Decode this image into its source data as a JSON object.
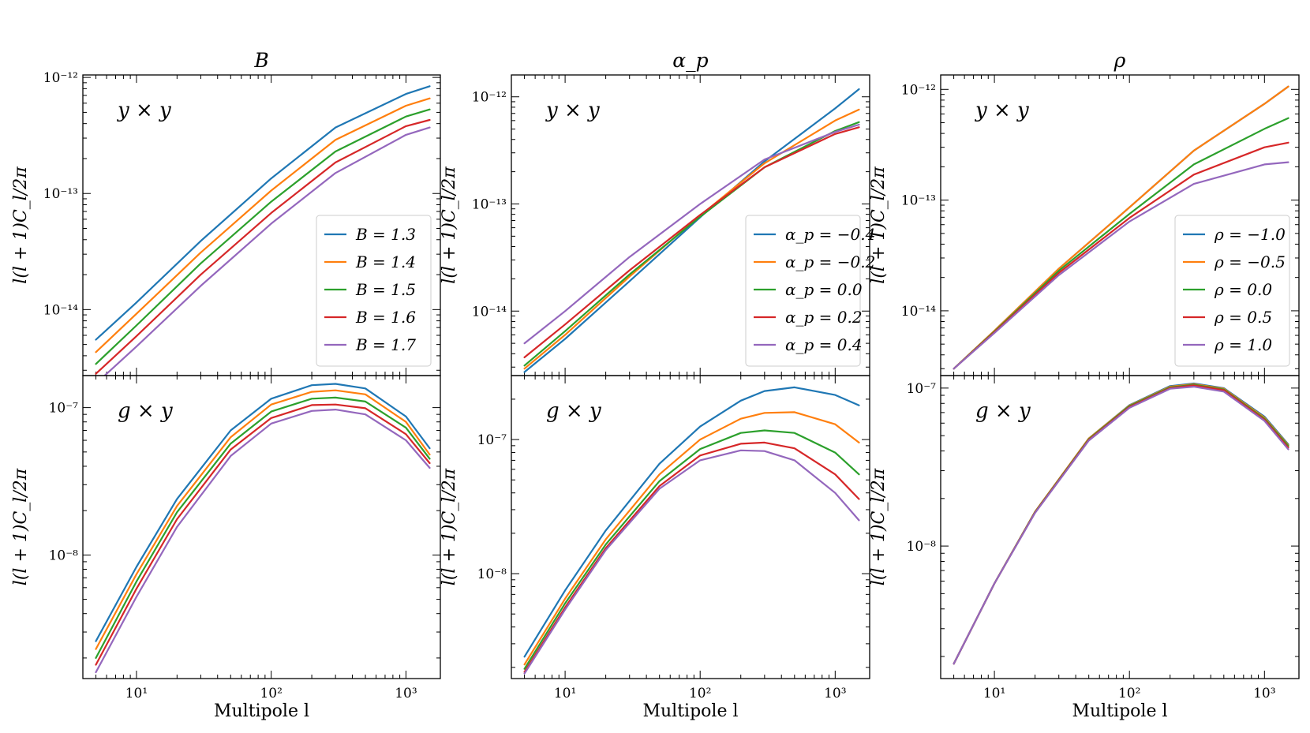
{
  "colors": [
    "#1f77b4",
    "#ff7f0e",
    "#2ca02c",
    "#d62728",
    "#9467bd"
  ],
  "chart_data": [
    {
      "type": "line",
      "id": "B-yy",
      "column_title": "B",
      "annotation": "y × y",
      "ylabel": "l(l + 1)C_l/2π",
      "xlabel": "",
      "xscale": "log",
      "yscale": "log",
      "xlim": [
        4,
        1800
      ],
      "ylim": [
        2.7e-15,
        1.05e-12
      ],
      "ytick_labels": [
        {
          "value": 1e-12,
          "label": "10⁻¹²"
        },
        {
          "value": 1e-13,
          "label": "10⁻¹³"
        },
        {
          "value": 1e-14,
          "label": "10⁻¹⁴"
        }
      ],
      "xtick_labels": [],
      "legend": "lower-right",
      "x": [
        5,
        10,
        30,
        100,
        300,
        1000,
        1500
      ],
      "series": [
        {
          "name": "B = 1.3",
          "values": [
            5.5e-15,
            1.15e-14,
            3.9e-14,
            1.35e-13,
            3.7e-13,
            7.2e-13,
            8.4e-13
          ]
        },
        {
          "name": "B = 1.4",
          "values": [
            4.3e-15,
            9.2e-15,
            3.1e-14,
            1.06e-13,
            2.9e-13,
            5.7e-13,
            6.6e-13
          ]
        },
        {
          "name": "B = 1.5",
          "values": [
            3.4e-15,
            7.3e-15,
            2.5e-14,
            8.5e-14,
            2.3e-13,
            4.6e-13,
            5.3e-13
          ]
        },
        {
          "name": "B = 1.6",
          "values": [
            2.8e-15,
            5.9e-15,
            2e-14,
            6.8e-14,
            1.85e-13,
            3.8e-13,
            4.3e-13
          ]
        },
        {
          "name": "B = 1.7",
          "values": [
            2.3e-15,
            4.8e-15,
            1.6e-14,
            5.5e-14,
            1.5e-13,
            3.2e-13,
            3.7e-13
          ]
        }
      ]
    },
    {
      "type": "line",
      "id": "ap-yy",
      "column_title": "α_p",
      "annotation": "y × y",
      "ylabel": "l(l + 1)C_l/2π",
      "xlabel": "",
      "xscale": "log",
      "yscale": "log",
      "xlim": [
        4,
        1800
      ],
      "ylim": [
        2.5e-15,
        1.6e-12
      ],
      "ytick_labels": [
        {
          "value": 1e-12,
          "label": "10⁻¹²"
        },
        {
          "value": 1e-13,
          "label": "10⁻¹³"
        },
        {
          "value": 1e-14,
          "label": "10⁻¹⁴"
        }
      ],
      "xtick_labels": [],
      "legend": "lower-right",
      "x": [
        5,
        10,
        30,
        100,
        300,
        1000,
        1500
      ],
      "series": [
        {
          "name": "α_p = −0.4",
          "values": [
            2.7e-15,
            5.5e-15,
            1.9e-14,
            7.5e-14,
            2.5e-13,
            7.8e-13,
            1.18e-12
          ]
        },
        {
          "name": "α_p = −0.2",
          "values": [
            2.9e-15,
            6e-15,
            2.1e-14,
            7.8e-14,
            2.4e-13,
            6e-13,
            7.6e-13
          ]
        },
        {
          "name": "α_p = 0.0",
          "values": [
            3.1e-15,
            6.5e-15,
            2.2e-14,
            7.6e-14,
            2.2e-13,
            4.8e-13,
            5.8e-13
          ]
        },
        {
          "name": "α_p = 0.2",
          "values": [
            3.7e-15,
            7.5e-15,
            2.4e-14,
            7.9e-14,
            2.2e-13,
            4.5e-13,
            5.2e-13
          ]
        },
        {
          "name": "α_p = 0.4",
          "values": [
            5e-15,
            1e-14,
            3.2e-14,
            1e-13,
            2.6e-13,
            4.7e-13,
            5.5e-13
          ]
        }
      ]
    },
    {
      "type": "line",
      "id": "rho-yy",
      "column_title": "ρ",
      "annotation": "y × y",
      "ylabel": "l(l + 1)C_l/2π",
      "xlabel": "",
      "xscale": "log",
      "yscale": "log",
      "xlim": [
        4,
        1800
      ],
      "ylim": [
        2.6e-15,
        1.35e-12
      ],
      "ytick_labels": [
        {
          "value": 1e-12,
          "label": "10⁻¹²"
        },
        {
          "value": 1e-13,
          "label": "10⁻¹³"
        },
        {
          "value": 1e-14,
          "label": "10⁻¹⁴"
        }
      ],
      "xtick_labels": [],
      "legend": "lower-right",
      "x": [
        5,
        10,
        30,
        100,
        300,
        1000,
        1500
      ],
      "series": [
        {
          "name": "ρ = −1.0",
          "values": [
            3e-15,
            6.6e-15,
            2.4e-14,
            8.6e-14,
            2.8e-13,
            7.4e-13,
            1.06e-12
          ]
        },
        {
          "name": "ρ = −0.5",
          "values": [
            3e-15,
            6.6e-15,
            2.4e-14,
            8.6e-14,
            2.8e-13,
            7.4e-13,
            1.06e-12
          ]
        },
        {
          "name": "ρ = 0.0",
          "values": [
            3e-15,
            6.5e-15,
            2.3e-14,
            7.5e-14,
            2.1e-13,
            4.4e-13,
            5.5e-13
          ]
        },
        {
          "name": "ρ = 0.5",
          "values": [
            3e-15,
            6.4e-15,
            2.2e-14,
            6.9e-14,
            1.7e-13,
            3e-13,
            3.3e-13
          ]
        },
        {
          "name": "ρ = 1.0",
          "values": [
            3e-15,
            6.3e-15,
            2.1e-14,
            6.4e-14,
            1.4e-13,
            2.1e-13,
            2.2e-13
          ]
        }
      ]
    },
    {
      "type": "line",
      "id": "B-gy",
      "column_title": "",
      "annotation": "g × y",
      "ylabel": "l(l + 1)C_l/2π",
      "xlabel": "Multipole l",
      "xscale": "log",
      "yscale": "log",
      "xlim": [
        4,
        1800
      ],
      "ylim": [
        1.45e-09,
        1.65e-07
      ],
      "ytick_labels": [
        {
          "value": 1e-07,
          "label": "10⁻⁷"
        },
        {
          "value": 1e-08,
          "label": "10⁻⁸"
        }
      ],
      "xtick_labels": [
        {
          "value": 10,
          "label": "10¹"
        },
        {
          "value": 100,
          "label": "10²"
        },
        {
          "value": 1000,
          "label": "10³"
        }
      ],
      "legend": "none",
      "x": [
        5,
        10,
        20,
        50,
        100,
        200,
        300,
        500,
        1000,
        1500
      ],
      "series": [
        {
          "name": "",
          "values": [
            2.6e-09,
            8.3e-09,
            2.4e-08,
            7e-08,
            1.15e-07,
            1.42e-07,
            1.45e-07,
            1.35e-07,
            8.7e-08,
            5.3e-08
          ]
        },
        {
          "name": "",
          "values": [
            2.3e-09,
            7.4e-09,
            2.15e-08,
            6.3e-08,
            1.05e-07,
            1.28e-07,
            1.31e-07,
            1.23e-07,
            8e-08,
            4.8e-08
          ]
        },
        {
          "name": "",
          "values": [
            2e-09,
            6.6e-09,
            1.95e-08,
            5.7e-08,
            9.4e-08,
            1.15e-07,
            1.17e-07,
            1.1e-07,
            7.3e-08,
            4.5e-08
          ]
        },
        {
          "name": "",
          "values": [
            1.8e-09,
            5.9e-09,
            1.75e-08,
            5.2e-08,
            8.5e-08,
            1.04e-07,
            1.05e-07,
            9.9e-08,
            6.6e-08,
            4.2e-08
          ]
        },
        {
          "name": "",
          "values": [
            1.6e-09,
            5.2e-09,
            1.55e-08,
            4.7e-08,
            7.8e-08,
            9.5e-08,
            9.7e-08,
            9e-08,
            6e-08,
            3.9e-08
          ]
        }
      ]
    },
    {
      "type": "line",
      "id": "ap-gy",
      "column_title": "",
      "annotation": "g × y",
      "ylabel": "l(l + 1)C_l/2π",
      "xlabel": "Multipole l",
      "xscale": "log",
      "yscale": "log",
      "xlim": [
        4,
        1800
      ],
      "ylim": [
        1.65e-09,
        3e-07
      ],
      "ytick_labels": [
        {
          "value": 1e-07,
          "label": "10⁻⁷"
        },
        {
          "value": 1e-08,
          "label": "10⁻⁸"
        }
      ],
      "xtick_labels": [
        {
          "value": 10,
          "label": "10¹"
        },
        {
          "value": 100,
          "label": "10²"
        },
        {
          "value": 1000,
          "label": "10³"
        }
      ],
      "legend": "none",
      "x": [
        5,
        10,
        20,
        50,
        100,
        200,
        300,
        500,
        1000,
        1500
      ],
      "series": [
        {
          "name": "",
          "values": [
            2.4e-09,
            7.5e-09,
            2.1e-08,
            6.6e-08,
            1.25e-07,
            1.95e-07,
            2.3e-07,
            2.45e-07,
            2.15e-07,
            1.8e-07
          ]
        },
        {
          "name": "",
          "values": [
            2.1e-09,
            6.5e-09,
            1.8e-08,
            5.5e-08,
            1e-07,
            1.43e-07,
            1.58e-07,
            1.6e-07,
            1.3e-07,
            9.5e-08
          ]
        },
        {
          "name": "",
          "values": [
            1.95e-09,
            6e-09,
            1.65e-08,
            4.9e-08,
            8.5e-08,
            1.12e-07,
            1.17e-07,
            1.12e-07,
            8e-08,
            5.5e-08
          ]
        },
        {
          "name": "",
          "values": [
            1.85e-09,
            5.6e-09,
            1.55e-08,
            4.5e-08,
            7.6e-08,
            9.3e-08,
            9.5e-08,
            8.6e-08,
            5.5e-08,
            3.6e-08
          ]
        },
        {
          "name": "",
          "values": [
            1.8e-09,
            5.4e-09,
            1.5e-08,
            4.3e-08,
            7e-08,
            8.3e-08,
            8.2e-08,
            7e-08,
            4e-08,
            2.5e-08
          ]
        }
      ]
    },
    {
      "type": "line",
      "id": "rho-gy",
      "column_title": "",
      "annotation": "g × y",
      "ylabel": "l(l + 1)C_l/2π",
      "xlabel": "Multipole l",
      "xscale": "log",
      "yscale": "log",
      "xlim": [
        4,
        1800
      ],
      "ylim": [
        1.45e-09,
        1.2e-07
      ],
      "ytick_labels": [
        {
          "value": 1e-07,
          "label": "10⁻⁷"
        },
        {
          "value": 1e-08,
          "label": "10⁻⁸"
        }
      ],
      "xtick_labels": [
        {
          "value": 10,
          "label": "10¹"
        },
        {
          "value": 100,
          "label": "10²"
        },
        {
          "value": 1000,
          "label": "10³"
        }
      ],
      "legend": "none",
      "x": [
        5,
        10,
        20,
        50,
        100,
        200,
        300,
        500,
        1000,
        1500
      ],
      "series": [
        {
          "name": "",
          "values": [
            1.8e-09,
            5.8e-09,
            1.65e-08,
            4.8e-08,
            7.8e-08,
            1.03e-07,
            1.07e-07,
            1e-07,
            6.6e-08,
            4.4e-08
          ]
        },
        {
          "name": "",
          "values": [
            1.8e-09,
            5.8e-09,
            1.65e-08,
            4.8e-08,
            7.75e-08,
            1.02e-07,
            1.06e-07,
            9.9e-08,
            6.5e-08,
            4.35e-08
          ]
        },
        {
          "name": "",
          "values": [
            1.8e-09,
            5.8e-09,
            1.64e-08,
            4.75e-08,
            7.7e-08,
            1.01e-07,
            1.05e-07,
            9.8e-08,
            6.4e-08,
            4.3e-08
          ]
        },
        {
          "name": "",
          "values": [
            1.8e-09,
            5.8e-09,
            1.63e-08,
            4.7e-08,
            7.6e-08,
            1e-07,
            1.04e-07,
            9.7e-08,
            6.3e-08,
            4.2e-08
          ]
        },
        {
          "name": "",
          "values": [
            1.8e-09,
            5.8e-09,
            1.62e-08,
            4.65e-08,
            7.5e-08,
            9.9e-08,
            1.02e-07,
            9.5e-08,
            6.2e-08,
            4.1e-08
          ]
        }
      ]
    }
  ]
}
